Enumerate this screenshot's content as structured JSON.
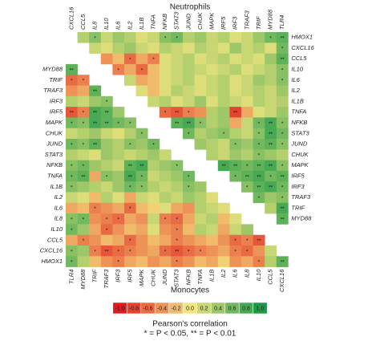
{
  "chart_data": [
    {
      "type": "heatmap",
      "title": "Neutrophils",
      "x_label_side": "top",
      "y_label_side": "right",
      "x_labels": [
        "CXCL16",
        "CCL5",
        "IL8",
        "IL10",
        "IL6",
        "IL2",
        "IL1B",
        "TNFA",
        "NFKB",
        "STAT3",
        "JUND",
        "CHUK",
        "MAPK",
        "IRF5",
        "IRF3",
        "TRAF3",
        "TRIF",
        "MYD88",
        "TLR4"
      ],
      "y_labels": [
        "HMOX1",
        "CXCL16",
        "CCL5",
        "IL10",
        "IL6",
        "IL2",
        "IL1B",
        "TNFA",
        "NFKB",
        "STAT3",
        "JUND",
        "CHUK",
        "MAPK",
        "IRF5",
        "IRF3",
        "TRAF3",
        "TRIF",
        "MYD88"
      ],
      "values": [
        [
          0.3,
          0.5,
          0.2,
          0.4,
          0.3,
          0.1,
          0.2,
          0.5,
          0.6,
          0.3,
          0.4,
          0.2,
          0.3,
          0.1,
          0.2,
          0.4,
          0.6,
          0.7
        ],
        [
          0.2,
          0.1,
          0.3,
          0.4,
          0.2,
          0.1,
          0.3,
          0.2,
          0.1,
          0.3,
          0.2,
          0.1,
          0.4,
          0.2,
          0.3,
          0.1,
          0.6
        ],
        [
          -0.4,
          -0.2,
          -0.6,
          -0.3,
          -0.5,
          0.1,
          0.2,
          0.3,
          0.1,
          0.2,
          0.3,
          0.1,
          0.2,
          0.1,
          0.4,
          0.7
        ],
        [
          -0.5,
          -0.3,
          -0.6,
          -0.2,
          0.1,
          0.2,
          0.3,
          0.2,
          0.1,
          0.2,
          0.3,
          0.1,
          0.2,
          0.3,
          0.5
        ],
        [
          0.2,
          -0.3,
          -0.2,
          0.1,
          0.2,
          0.3,
          0.1,
          0.2,
          0.3,
          0.1,
          0.2,
          0.4,
          0.3,
          0.5
        ],
        [
          0.1,
          -0.2,
          0.1,
          0.3,
          0.2,
          0.1,
          0.2,
          0.3,
          0.1,
          0.2,
          0.3,
          0.2,
          0.4
        ],
        [
          0.2,
          0.3,
          0.1,
          0.2,
          0.4,
          0.1,
          0.3,
          0.2,
          0.1,
          0.3,
          0.2,
          0.3
        ],
        [
          -0.6,
          -0.7,
          -0.5,
          -0.4,
          0.3,
          0.4,
          -0.8,
          -0.3,
          0.1,
          0.2,
          0.4
        ],
        [
          0.7,
          0.8,
          0.5,
          0.3,
          0.4,
          -0.3,
          0.2,
          0.6,
          0.8,
          0.5
        ],
        [
          0.6,
          0.3,
          0.4,
          0.5,
          0.3,
          0.2,
          0.5,
          0.8,
          0.6
        ],
        [
          0.4,
          0.3,
          0.2,
          0.5,
          0.4,
          0.6,
          0.7,
          0.5
        ],
        [
          0.3,
          0.2,
          0.4,
          0.3,
          0.5,
          0.4,
          0.3
        ],
        [
          0.8,
          0.7,
          0.6,
          0.7,
          0.8,
          0.5
        ],
        [
          0.6,
          0.7,
          0.8,
          0.6,
          0.7
        ],
        [
          0.5,
          0.7,
          0.8,
          0.6
        ],
        [
          0.6,
          0.4,
          0.5
        ],
        [
          0.3,
          0.8
        ],
        [
          0.7
        ]
      ],
      "significance": [
        [
          null,
          "*",
          null,
          null,
          null,
          null,
          null,
          "*",
          "*",
          null,
          null,
          null,
          null,
          null,
          null,
          null,
          "*",
          "**"
        ],
        [
          null,
          null,
          null,
          null,
          null,
          null,
          null,
          null,
          null,
          null,
          null,
          null,
          null,
          null,
          null,
          null,
          "*"
        ],
        [
          null,
          null,
          "*",
          null,
          "*",
          null,
          null,
          null,
          null,
          null,
          null,
          null,
          null,
          null,
          null,
          "**"
        ],
        [
          "*",
          null,
          "*",
          null,
          null,
          null,
          null,
          null,
          null,
          null,
          null,
          null,
          null,
          null,
          "*"
        ],
        [
          null,
          null,
          null,
          null,
          null,
          null,
          null,
          null,
          null,
          null,
          null,
          null,
          null,
          "*"
        ],
        [
          null,
          null,
          null,
          null,
          null,
          null,
          null,
          null,
          null,
          null,
          null,
          null,
          null
        ],
        [
          null,
          null,
          null,
          null,
          null,
          null,
          null,
          null,
          null,
          null,
          null,
          null
        ],
        [
          "*",
          "**",
          "*",
          null,
          null,
          null,
          "**",
          null,
          null,
          null,
          null
        ],
        [
          "**",
          "**",
          "*",
          null,
          null,
          null,
          null,
          "*",
          "**",
          "*"
        ],
        [
          "*",
          null,
          null,
          "*",
          null,
          null,
          "*",
          "**",
          "*"
        ],
        [
          null,
          null,
          null,
          "*",
          null,
          "*",
          "**",
          "*"
        ],
        [
          null,
          null,
          null,
          null,
          "*",
          null,
          null
        ],
        [
          "**",
          "**",
          "*",
          "**",
          "**",
          "*"
        ],
        [
          "*",
          "**",
          "**",
          "*",
          "**"
        ],
        [
          "*",
          "**",
          "**",
          "*"
        ],
        [
          "*",
          null,
          "*"
        ],
        [
          null,
          "**"
        ],
        [
          "**"
        ]
      ]
    },
    {
      "type": "heatmap",
      "title": "Monocytes",
      "x_label_side": "bottom",
      "y_label_side": "left",
      "x_labels": [
        "TLR4",
        "MYD88",
        "TRIF",
        "TRAF3",
        "IRF3",
        "IRF5",
        "MAPK",
        "CHUK",
        "JUND",
        "STAT3",
        "NFKB",
        "TNFA",
        "IL1B",
        "IL2",
        "IL6",
        "IL8",
        "IL10",
        "CCL5",
        "CXCL16"
      ],
      "y_labels": [
        "MYD88",
        "TRIF",
        "TRAF3",
        "IRF3",
        "IRF5",
        "MAPK",
        "CHUK",
        "JUND",
        "STAT3",
        "NFKB",
        "TNFA",
        "IL1B",
        "IL2",
        "IL6",
        "IL8",
        "IL10",
        "CCL5",
        "CXCL16",
        "HMOX1"
      ],
      "values": [
        [
          0.7
        ],
        [
          -0.6,
          -0.5
        ],
        [
          -0.4,
          -0.3,
          0.7
        ],
        [
          0.3,
          0.2,
          0.4,
          0.5
        ],
        [
          -0.7,
          -0.5,
          0.8,
          0.7,
          0.4
        ],
        [
          0.6,
          0.5,
          0.8,
          0.7,
          0.6,
          0.5
        ],
        [
          0.2,
          0.3,
          0.4,
          0.2,
          0.1,
          0.3,
          0.5
        ],
        [
          0.6,
          0.5,
          0.7,
          0.4,
          0.3,
          0.5,
          0.4,
          0.6
        ],
        [
          0.3,
          0.2,
          0.1,
          0.4,
          0.3,
          0.2,
          0.3,
          0.4,
          0.2
        ],
        [
          0.5,
          0.6,
          0.4,
          0.3,
          0.2,
          0.7,
          0.8,
          0.3,
          0.4,
          0.5
        ],
        [
          0.6,
          0.7,
          -0.3,
          0.5,
          0.4,
          0.8,
          0.6,
          0.2,
          0.3,
          0.4,
          0.6
        ],
        [
          0.5,
          0.4,
          0.3,
          0.2,
          0.4,
          0.6,
          0.5,
          0.3,
          0.2,
          0.3,
          0.5,
          0.4
        ],
        [
          0.2,
          0.1,
          -0.2,
          0.3,
          0.1,
          -0.3,
          0.2,
          0.1,
          0.3,
          0.2,
          0.4,
          0.3,
          0.1
        ],
        [
          -0.3,
          -0.2,
          -0.5,
          -0.4,
          -0.3,
          -0.6,
          -0.2,
          -0.1,
          0.1,
          -0.3,
          -0.4,
          0.3,
          0.2,
          0.1
        ],
        [
          0.5,
          0.6,
          -0.4,
          -0.5,
          -0.6,
          -0.3,
          -0.4,
          0.2,
          -0.5,
          -0.6,
          -0.3,
          0.2,
          0.3,
          -0.2,
          0.1
        ],
        [
          0.6,
          0.4,
          -0.3,
          -0.6,
          -0.4,
          -0.2,
          -0.3,
          0.1,
          -0.4,
          -0.5,
          -0.2,
          0.3,
          0.2,
          -0.3,
          0.2,
          0.4
        ],
        [
          -0.3,
          -0.5,
          -0.4,
          -0.2,
          -0.3,
          -0.6,
          -0.4,
          -0.2,
          -0.3,
          -0.5,
          -0.4,
          -0.3,
          -0.2,
          -0.4,
          -0.6,
          -0.5,
          -0.7
        ],
        [
          0.5,
          0.4,
          -0.5,
          -0.7,
          -0.6,
          -0.5,
          -0.4,
          -0.3,
          -0.6,
          -0.7,
          -0.6,
          -0.5,
          -0.4,
          -0.3,
          -0.5,
          -0.6,
          -0.4,
          0.2
        ],
        [
          0.6,
          0.3,
          -0.2,
          -0.4,
          -0.5,
          -0.3,
          -0.2,
          -0.4,
          -0.3,
          -0.5,
          -0.4,
          -0.2,
          -0.3,
          -0.1,
          -0.4,
          -0.3,
          -0.5,
          0.3,
          0.7
        ]
      ],
      "significance": [
        [
          "**"
        ],
        [
          "*",
          "*"
        ],
        [
          null,
          null,
          "**"
        ],
        [
          null,
          null,
          null,
          "*"
        ],
        [
          "**",
          "*",
          "**",
          "**",
          null
        ],
        [
          "*",
          "*",
          "**",
          "**",
          "*",
          "*"
        ],
        [
          null,
          null,
          null,
          null,
          null,
          null,
          "*"
        ],
        [
          "*",
          "*",
          "**",
          null,
          null,
          "*",
          null,
          "*"
        ],
        [
          null,
          null,
          null,
          null,
          null,
          null,
          null,
          null,
          null
        ],
        [
          "*",
          "*",
          null,
          null,
          null,
          "**",
          "**",
          null,
          null,
          "*"
        ],
        [
          "*",
          "**",
          null,
          "*",
          null,
          "**",
          "*",
          null,
          null,
          null,
          "*"
        ],
        [
          "*",
          null,
          null,
          null,
          null,
          "*",
          "*",
          null,
          null,
          null,
          "*",
          null
        ],
        [
          null,
          null,
          null,
          null,
          null,
          null,
          null,
          null,
          null,
          null,
          null,
          null,
          null
        ],
        [
          null,
          null,
          "*",
          null,
          null,
          "*",
          null,
          null,
          null,
          null,
          null,
          null,
          null,
          null
        ],
        [
          "*",
          "*",
          null,
          "*",
          "*",
          null,
          null,
          null,
          "*",
          "*",
          null,
          null,
          null,
          null,
          null
        ],
        [
          "*",
          null,
          null,
          "*",
          null,
          null,
          null,
          null,
          null,
          "*",
          null,
          null,
          null,
          null,
          null,
          null
        ],
        [
          null,
          "*",
          null,
          null,
          null,
          "*",
          null,
          null,
          null,
          "*",
          null,
          null,
          null,
          null,
          "*",
          "*",
          "**"
        ],
        [
          "*",
          null,
          "*",
          "**",
          "*",
          "*",
          null,
          null,
          "*",
          "**",
          "*",
          "*",
          null,
          null,
          "*",
          "*",
          null,
          null
        ],
        [
          "*",
          null,
          null,
          null,
          "*",
          null,
          null,
          null,
          null,
          "*",
          null,
          null,
          null,
          null,
          null,
          null,
          "*",
          null,
          "**"
        ]
      ]
    }
  ],
  "colorbar": {
    "title": "Pearson's correlation",
    "note": "* = P < 0.05, ** = P < 0.01",
    "colors": [
      "#e3191d",
      "#f3e57e",
      "#1c9a48"
    ],
    "ticks": [
      {
        "value": -1,
        "label": "-1.0"
      },
      {
        "value": -0.8,
        "label": "-0.8"
      },
      {
        "value": -0.6,
        "label": "-0.6"
      },
      {
        "value": -0.4,
        "label": "-0.4"
      },
      {
        "value": -0.2,
        "label": "-0.2"
      },
      {
        "value": 0,
        "label": "0.0"
      },
      {
        "value": 0.2,
        "label": "0.2"
      },
      {
        "value": 0.4,
        "label": "0.4"
      },
      {
        "value": 0.6,
        "label": "0.6"
      },
      {
        "value": 0.8,
        "label": "0.8"
      },
      {
        "value": 1,
        "label": "1.0"
      }
    ]
  }
}
